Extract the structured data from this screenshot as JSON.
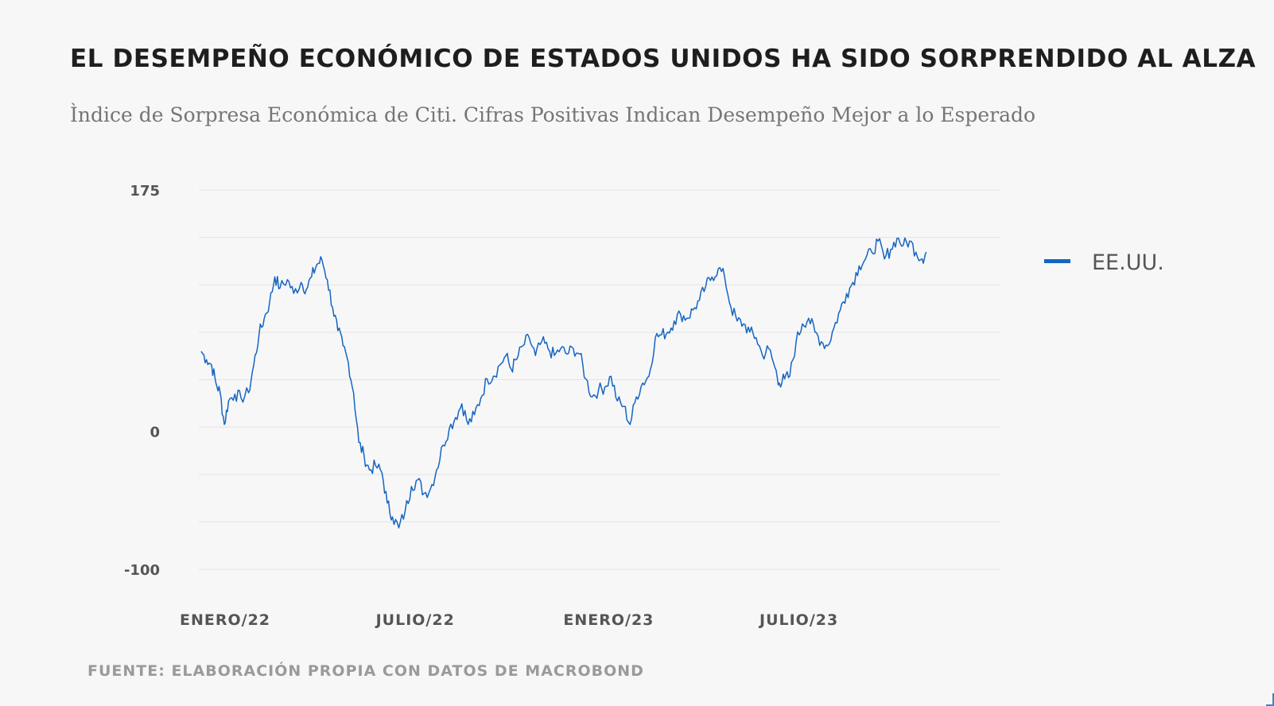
{
  "title": "EL DESEMPEÑO ECONÓMICO DE ESTADOS UNIDOS HA SIDO SORPRENDIDO AL ALZA",
  "subtitle": "Ìndice de Sorpresa Económica de Citi. Cifras Positivas Indican Desempeño Mejor a lo Esperado",
  "source": "FUENTE: ELABORACIÓN PROPIA CON DATOS DE MACROBOND",
  "colors": {
    "line": "#1565c0",
    "grid": "#e4e4e4",
    "background": "#f7f7f8"
  },
  "chart_data": {
    "type": "line",
    "title": "EL DESEMPEÑO ECONÓMICO DE ESTADOS UNIDOS HA SIDO SORPRENDIDO AL ALZA",
    "xlabel": "",
    "ylabel": "",
    "ylim": [
      -100,
      175
    ],
    "y_ticks": [
      {
        "value": 175,
        "label": "175"
      },
      {
        "value": 0,
        "label": "0"
      },
      {
        "value": -100,
        "label": "-100"
      }
    ],
    "x_ticks": [
      {
        "t": 0,
        "label": "ENERO/22"
      },
      {
        "t": 181,
        "label": "JULIO/22"
      },
      {
        "t": 365,
        "label": "ENERO/23"
      },
      {
        "t": 546,
        "label": "JULIO/23"
      }
    ],
    "x_domain": [
      0,
      730
    ],
    "grid": true,
    "legend": {
      "position": "right",
      "entries": [
        "EE.UU."
      ]
    },
    "series": [
      {
        "name": "EE.UU.",
        "points": [
          [
            0,
            58
          ],
          [
            5,
            52
          ],
          [
            10,
            48
          ],
          [
            14,
            35
          ],
          [
            18,
            28
          ],
          [
            22,
            5
          ],
          [
            26,
            22
          ],
          [
            32,
            27
          ],
          [
            38,
            24
          ],
          [
            45,
            28
          ],
          [
            50,
            48
          ],
          [
            55,
            70
          ],
          [
            60,
            82
          ],
          [
            65,
            93
          ],
          [
            70,
            112
          ],
          [
            75,
            104
          ],
          [
            82,
            110
          ],
          [
            88,
            100
          ],
          [
            95,
            108
          ],
          [
            100,
            103
          ],
          [
            105,
            112
          ],
          [
            110,
            121
          ],
          [
            115,
            124
          ],
          [
            120,
            110
          ],
          [
            125,
            90
          ],
          [
            130,
            73
          ],
          [
            135,
            62
          ],
          [
            140,
            50
          ],
          [
            145,
            28
          ],
          [
            150,
            -8
          ],
          [
            155,
            -18
          ],
          [
            160,
            -28
          ],
          [
            166,
            -25
          ],
          [
            172,
            -30
          ],
          [
            177,
            -52
          ],
          [
            182,
            -62
          ],
          [
            188,
            -70
          ],
          [
            194,
            -58
          ],
          [
            200,
            -40
          ],
          [
            206,
            -35
          ],
          [
            212,
            -45
          ],
          [
            218,
            -42
          ],
          [
            224,
            -28
          ],
          [
            230,
            -10
          ],
          [
            236,
            2
          ],
          [
            242,
            10
          ],
          [
            248,
            20
          ],
          [
            254,
            5
          ],
          [
            260,
            12
          ],
          [
            266,
            24
          ],
          [
            272,
            38
          ],
          [
            278,
            40
          ],
          [
            284,
            48
          ],
          [
            290,
            55
          ],
          [
            295,
            45
          ],
          [
            300,
            52
          ],
          [
            306,
            62
          ],
          [
            312,
            68
          ],
          [
            318,
            55
          ],
          [
            324,
            65
          ],
          [
            330,
            60
          ],
          [
            336,
            55
          ],
          [
            342,
            60
          ],
          [
            348,
            56
          ],
          [
            354,
            60
          ],
          [
            360,
            56
          ],
          [
            366,
            38
          ],
          [
            372,
            25
          ],
          [
            378,
            30
          ],
          [
            384,
            32
          ],
          [
            390,
            40
          ],
          [
            396,
            22
          ],
          [
            402,
            18
          ],
          [
            408,
            5
          ],
          [
            414,
            25
          ],
          [
            420,
            35
          ],
          [
            426,
            40
          ],
          [
            432,
            68
          ],
          [
            438,
            70
          ],
          [
            444,
            72
          ],
          [
            450,
            80
          ],
          [
            456,
            85
          ],
          [
            462,
            82
          ],
          [
            468,
            88
          ],
          [
            474,
            95
          ],
          [
            480,
            105
          ],
          [
            486,
            112
          ],
          [
            492,
            118
          ],
          [
            498,
            112
          ],
          [
            504,
            90
          ],
          [
            510,
            80
          ],
          [
            516,
            78
          ],
          [
            522,
            72
          ],
          [
            528,
            68
          ],
          [
            534,
            55
          ],
          [
            540,
            60
          ],
          [
            546,
            46
          ],
          [
            550,
            35
          ],
          [
            555,
            38
          ],
          [
            560,
            40
          ],
          [
            566,
            65
          ],
          [
            572,
            78
          ],
          [
            578,
            82
          ],
          [
            584,
            72
          ],
          [
            590,
            65
          ],
          [
            596,
            62
          ],
          [
            602,
            75
          ],
          [
            608,
            88
          ],
          [
            614,
            100
          ],
          [
            620,
            108
          ],
          [
            626,
            120
          ],
          [
            632,
            125
          ],
          [
            638,
            130
          ],
          [
            644,
            138
          ],
          [
            650,
            125
          ],
          [
            656,
            132
          ],
          [
            662,
            140
          ],
          [
            668,
            135
          ],
          [
            674,
            138
          ],
          [
            680,
            130
          ],
          [
            686,
            125
          ],
          [
            690,
            130
          ]
        ]
      }
    ]
  }
}
